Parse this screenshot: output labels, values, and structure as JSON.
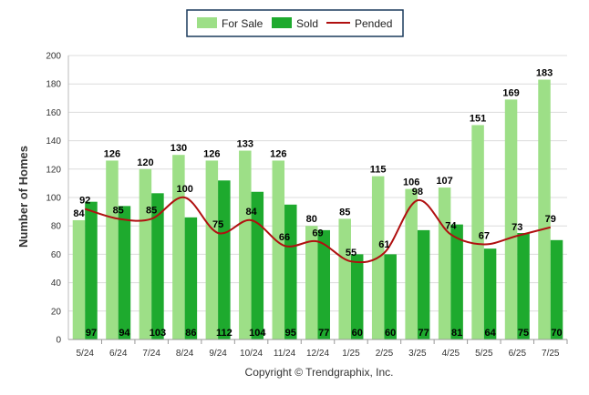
{
  "chart_data": {
    "type": "bar",
    "categories": [
      "5/24",
      "6/24",
      "7/24",
      "8/24",
      "9/24",
      "10/24",
      "11/24",
      "12/24",
      "1/25",
      "2/25",
      "3/25",
      "4/25",
      "5/25",
      "6/25",
      "7/25"
    ],
    "series": [
      {
        "name": "For Sale",
        "type": "bar",
        "color": "#9ddf87",
        "values": [
          84,
          126,
          120,
          130,
          126,
          133,
          126,
          80,
          85,
          115,
          106,
          107,
          151,
          169,
          183
        ]
      },
      {
        "name": "Sold",
        "type": "bar",
        "color": "#1eaa2e",
        "values": [
          97,
          94,
          103,
          86,
          112,
          104,
          95,
          77,
          60,
          60,
          77,
          81,
          64,
          75,
          70
        ]
      },
      {
        "name": "Pended",
        "type": "line",
        "color": "#b01010",
        "values": [
          92,
          85,
          85,
          100,
          75,
          84,
          66,
          69,
          55,
          61,
          98,
          74,
          67,
          73,
          79
        ]
      }
    ],
    "ylabel": "Number of Homes",
    "ylim": [
      0,
      200
    ],
    "yticks": [
      0,
      20,
      40,
      60,
      80,
      100,
      120,
      140,
      160,
      180,
      200
    ],
    "grid": true,
    "legend": "top-center"
  },
  "footer": "Copyright © Trendgraphix, Inc."
}
